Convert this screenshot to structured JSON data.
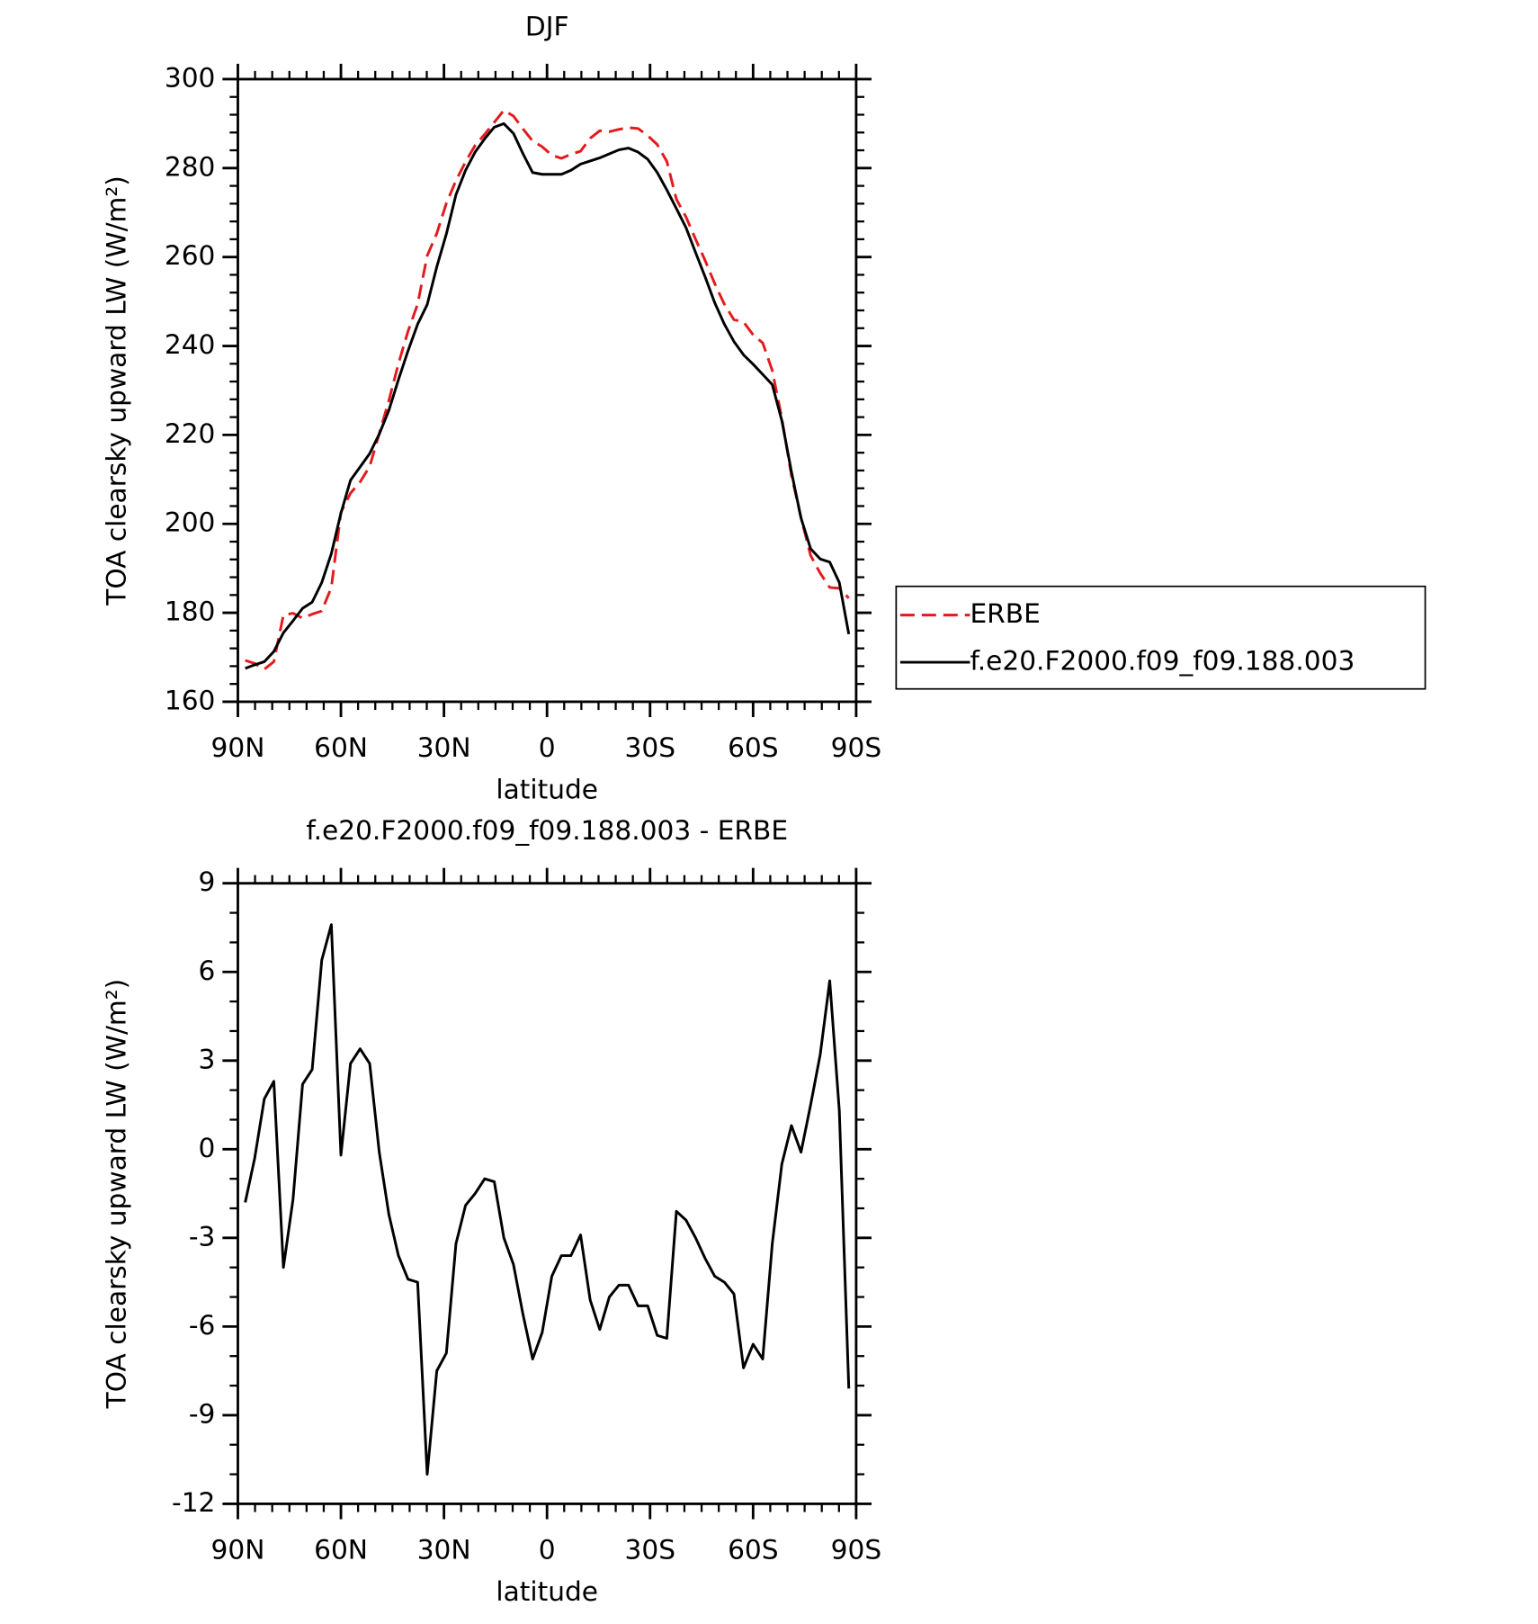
{
  "chart_data": [
    {
      "type": "line",
      "title": "DJF",
      "x_label": "latitude",
      "y_label": "TOA clearsky upward LW (W/m²)",
      "x": [
        87.86,
        85.1,
        82.31,
        79.53,
        76.74,
        73.95,
        71.16,
        68.37,
        65.58,
        62.79,
        60.0,
        57.21,
        54.42,
        51.63,
        48.84,
        46.05,
        43.26,
        40.47,
        37.67,
        34.88,
        32.09,
        29.3,
        26.51,
        23.72,
        20.93,
        18.14,
        15.35,
        12.56,
        9.77,
        6.98,
        4.19,
        1.4,
        -1.4,
        -4.19,
        -6.98,
        -9.77,
        -12.56,
        -15.35,
        -18.14,
        -20.93,
        -23.72,
        -26.51,
        -29.3,
        -32.09,
        -34.88,
        -37.67,
        -40.47,
        -43.26,
        -46.05,
        -48.84,
        -51.63,
        -54.42,
        -57.21,
        -60.0,
        -62.79,
        -65.58,
        -68.37,
        -71.16,
        -73.95,
        -76.74,
        -79.53,
        -82.31,
        -85.1,
        -87.86
      ],
      "series": [
        {
          "name": "ERBE",
          "color": "#e41a1c",
          "dashed": true,
          "values": [
            169.3,
            168.6,
            167.3,
            169.0,
            179.5,
            179.9,
            178.8,
            179.7,
            180.4,
            185.7,
            202.6,
            206.9,
            209.4,
            212.9,
            220.3,
            227.7,
            236.0,
            243.3,
            249.4,
            260.3,
            265.3,
            272.1,
            277.2,
            281.4,
            285.1,
            287.6,
            290.3,
            293.0,
            291.7,
            288.8,
            286.1,
            284.8,
            282.9,
            282.2,
            283.1,
            283.8,
            286.7,
            288.4,
            288.2,
            288.7,
            289.1,
            288.9,
            287.3,
            285.3,
            281.5,
            273.0,
            269.0,
            264.0,
            259.2,
            254.0,
            249.4,
            245.9,
            245.4,
            242.5,
            240.7,
            234.5,
            223.7,
            210.9,
            201.4,
            192.9,
            188.9,
            185.7,
            185.5,
            183.3
          ]
        },
        {
          "name": "f.e20.F2000.f09_f09.188.003",
          "color": "#000000",
          "dashed": false,
          "values": [
            167.5,
            168.3,
            169.0,
            171.3,
            175.5,
            178.2,
            181.0,
            182.4,
            186.8,
            193.3,
            202.4,
            209.8,
            212.8,
            215.8,
            220.2,
            225.5,
            232.4,
            238.9,
            244.9,
            249.3,
            257.8,
            265.2,
            274.0,
            279.5,
            283.6,
            286.6,
            289.2,
            290.0,
            287.8,
            283.2,
            279.0,
            278.6,
            278.6,
            278.6,
            279.5,
            280.9,
            281.6,
            282.3,
            283.2,
            284.1,
            284.5,
            283.6,
            282.0,
            279.0,
            275.1,
            270.9,
            266.6,
            261.0,
            255.5,
            249.7,
            244.9,
            241.0,
            238.0,
            235.9,
            233.6,
            231.3,
            223.2,
            211.7,
            201.3,
            194.4,
            192.1,
            191.4,
            186.8,
            175.2
          ]
        }
      ],
      "xlim": [
        90,
        -90
      ],
      "xticks": [
        {
          "value": 90,
          "label": "90N"
        },
        {
          "value": 60,
          "label": "60N"
        },
        {
          "value": 30,
          "label": "30N"
        },
        0,
        {
          "value": -30,
          "label": "30S"
        },
        {
          "value": -60,
          "label": "60S"
        },
        {
          "value": -90,
          "label": "90S"
        }
      ],
      "ylim": [
        160,
        300
      ],
      "yticks": [
        160,
        180,
        200,
        220,
        240,
        260,
        280,
        300
      ],
      "legend": "right",
      "grid": false
    },
    {
      "type": "line",
      "title": "f.e20.F2000.f09_f09.188.003 - ERBE",
      "x_label": "latitude",
      "y_label": "TOA clearsky upward LW (W/m²)",
      "x": [
        87.86,
        85.1,
        82.31,
        79.53,
        76.74,
        73.95,
        71.16,
        68.37,
        65.58,
        62.79,
        60.0,
        57.21,
        54.42,
        51.63,
        48.84,
        46.05,
        43.26,
        40.47,
        37.67,
        34.88,
        32.09,
        29.3,
        26.51,
        23.72,
        20.93,
        18.14,
        15.35,
        12.56,
        9.77,
        6.98,
        4.19,
        1.4,
        -1.4,
        -4.19,
        -6.98,
        -9.77,
        -12.56,
        -15.35,
        -18.14,
        -20.93,
        -23.72,
        -26.51,
        -29.3,
        -32.09,
        -34.88,
        -37.67,
        -40.47,
        -43.26,
        -46.05,
        -48.84,
        -51.63,
        -54.42,
        -57.21,
        -60.0,
        -62.79,
        -65.58,
        -68.37,
        -71.16,
        -73.95,
        -76.74,
        -79.53,
        -82.31,
        -85.1,
        -87.86
      ],
      "series": [
        {
          "color": "#000000",
          "dashed": false,
          "values": [
            -1.8,
            -0.3,
            1.7,
            2.3,
            -4.0,
            -1.7,
            2.2,
            2.7,
            6.4,
            7.6,
            -0.2,
            2.9,
            3.4,
            2.9,
            -0.1,
            -2.2,
            -3.6,
            -4.4,
            -4.5,
            -11.0,
            -7.5,
            -6.9,
            -3.2,
            -1.9,
            -1.5,
            -1.0,
            -1.1,
            -3.0,
            -3.9,
            -5.6,
            -7.1,
            -6.2,
            -4.3,
            -3.6,
            -3.6,
            -2.9,
            -5.1,
            -6.1,
            -5.0,
            -4.6,
            -4.6,
            -5.3,
            -5.3,
            -6.3,
            -6.4,
            -2.1,
            -2.4,
            -3.0,
            -3.7,
            -4.3,
            -4.5,
            -4.9,
            -7.4,
            -6.6,
            -7.1,
            -3.2,
            -0.5,
            0.8,
            -0.1,
            1.5,
            3.2,
            5.7,
            1.3,
            -8.1
          ]
        }
      ],
      "xlim": [
        90,
        -90
      ],
      "xticks": [
        {
          "value": 90,
          "label": "90N"
        },
        {
          "value": 60,
          "label": "60N"
        },
        {
          "value": 30,
          "label": "30N"
        },
        0,
        {
          "value": -30,
          "label": "30S"
        },
        {
          "value": -60,
          "label": "60S"
        },
        {
          "value": -90,
          "label": "90S"
        }
      ],
      "ylim": [
        -12,
        9
      ],
      "yticks": [
        -12,
        -9,
        -6,
        -3,
        0,
        3,
        6,
        9
      ],
      "grid": false
    }
  ]
}
